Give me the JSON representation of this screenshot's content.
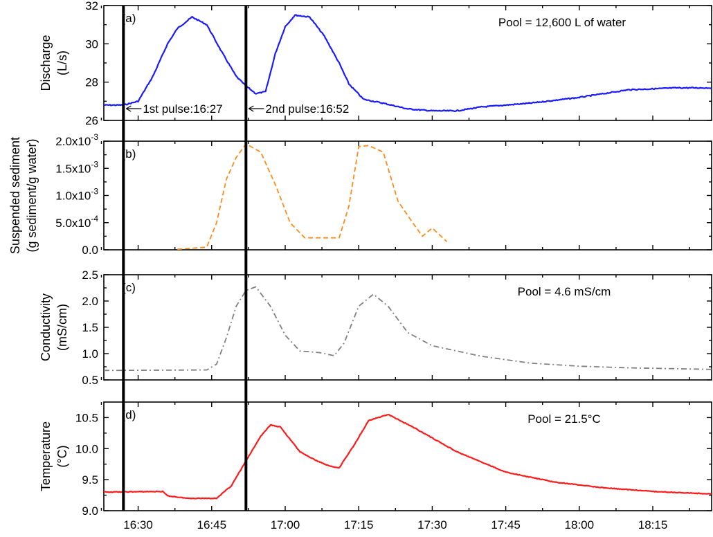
{
  "chart_data": [
    {
      "type": "line",
      "panel_label": "(a)",
      "ylabel_lines": [
        "Discharge",
        "(L/s)"
      ],
      "ylim": [
        26,
        32
      ],
      "yticks": [
        "26",
        "28",
        "30",
        "32"
      ],
      "ytick_values": [
        26,
        28,
        30,
        32
      ],
      "annotation": "Pool = 12,600 L of water",
      "series": [
        {
          "color": "#1a1aff",
          "style": "solid-noisy",
          "points": [
            [
              "16:23",
              26.8
            ],
            [
              "16:27",
              26.8
            ],
            [
              "16:30",
              27.0
            ],
            [
              "16:33",
              28.3
            ],
            [
              "16:36",
              30.0
            ],
            [
              "16:38",
              30.8
            ],
            [
              "16:41",
              31.4
            ],
            [
              "16:44",
              31.0
            ],
            [
              "16:47",
              29.6
            ],
            [
              "16:50",
              28.3
            ],
            [
              "16:52",
              27.8
            ],
            [
              "16:54",
              27.4
            ],
            [
              "16:56",
              27.5
            ],
            [
              "16:58",
              29.5
            ],
            [
              "17:00",
              30.9
            ],
            [
              "17:02",
              31.5
            ],
            [
              "17:05",
              31.4
            ],
            [
              "17:08",
              30.4
            ],
            [
              "17:11",
              29.0
            ],
            [
              "17:13",
              27.9
            ],
            [
              "17:16",
              27.1
            ],
            [
              "17:20",
              26.9
            ],
            [
              "17:25",
              26.6
            ],
            [
              "17:30",
              26.5
            ],
            [
              "17:35",
              26.5
            ],
            [
              "17:40",
              26.7
            ],
            [
              "17:50",
              26.9
            ],
            [
              "18:00",
              27.2
            ],
            [
              "18:10",
              27.6
            ],
            [
              "18:20",
              27.7
            ],
            [
              "18:27",
              27.7
            ]
          ]
        }
      ],
      "pulse_labels": [
        {
          "time": "16:27",
          "text": "1st pulse:16:27"
        },
        {
          "time": "16:52",
          "text": "2nd pulse:16:52"
        }
      ]
    },
    {
      "type": "line",
      "panel_label": "(b)",
      "ylabel_lines": [
        "Suspended sediment",
        "(g sediment/g water)"
      ],
      "ylim": [
        0,
        0.002
      ],
      "yticks": [
        "0.0",
        "5.0x10",
        "1.0x10",
        "1.5x10",
        "2.0x10"
      ],
      "ytick_exponents": [
        "",
        "-4",
        "-3",
        "-3",
        "-3"
      ],
      "ytick_values": [
        0,
        0.0005,
        0.001,
        0.0015,
        0.002
      ],
      "series": [
        {
          "color": "#ff8c1a",
          "style": "dashed",
          "points": [
            [
              "16:38",
              1e-05
            ],
            [
              "16:44",
              5e-05
            ],
            [
              "16:46",
              0.0005
            ],
            [
              "16:48",
              0.0013
            ],
            [
              "16:50",
              0.0017
            ],
            [
              "16:52",
              0.00195
            ],
            [
              "16:55",
              0.0018
            ],
            [
              "16:58",
              0.0012
            ],
            [
              "17:01",
              0.0005
            ],
            [
              "17:04",
              0.00022
            ],
            [
              "17:08",
              0.00022
            ],
            [
              "17:11",
              0.00022
            ],
            [
              "17:13",
              0.0008
            ],
            [
              "17:15",
              0.0019
            ],
            [
              "17:17",
              0.00192
            ],
            [
              "17:20",
              0.0018
            ],
            [
              "17:23",
              0.0009
            ],
            [
              "17:26",
              0.0005
            ],
            [
              "17:28",
              0.00025
            ],
            [
              "17:30",
              0.0004
            ],
            [
              "17:33",
              0.00015
            ]
          ]
        }
      ]
    },
    {
      "type": "line",
      "panel_label": "(c)",
      "ylabel_lines": [
        "Conductivity",
        "(mS/cm)"
      ],
      "ylim": [
        0.5,
        2.5
      ],
      "yticks": [
        "0.5",
        "1.0",
        "1.5",
        "2.0",
        "2.5"
      ],
      "ytick_values": [
        0.5,
        1.0,
        1.5,
        2.0,
        2.5
      ],
      "annotation": "Pool = 4.6 mS/cm",
      "series": [
        {
          "color": "#808080",
          "style": "dash-dot",
          "points": [
            [
              "16:23",
              0.68
            ],
            [
              "16:44",
              0.69
            ],
            [
              "16:46",
              0.8
            ],
            [
              "16:48",
              1.3
            ],
            [
              "16:50",
              1.9
            ],
            [
              "16:52",
              2.2
            ],
            [
              "16:54",
              2.27
            ],
            [
              "16:57",
              1.9
            ],
            [
              "17:00",
              1.35
            ],
            [
              "17:03",
              1.05
            ],
            [
              "17:07",
              1.02
            ],
            [
              "17:10",
              0.96
            ],
            [
              "17:12",
              1.2
            ],
            [
              "17:15",
              1.9
            ],
            [
              "17:18",
              2.13
            ],
            [
              "17:21",
              1.9
            ],
            [
              "17:25",
              1.4
            ],
            [
              "17:30",
              1.15
            ],
            [
              "17:40",
              0.95
            ],
            [
              "17:50",
              0.82
            ],
            [
              "18:00",
              0.76
            ],
            [
              "18:10",
              0.73
            ],
            [
              "18:27",
              0.7
            ]
          ]
        }
      ]
    },
    {
      "type": "line",
      "panel_label": "(d)",
      "ylabel_lines": [
        "Temperature",
        "(°C)"
      ],
      "ylim": [
        9.0,
        10.75
      ],
      "yticks": [
        "9.0",
        "9.5",
        "10.0",
        "10.5"
      ],
      "ytick_values": [
        9.0,
        9.5,
        10.0,
        10.5
      ],
      "annotation": "Pool = 21.5°C",
      "series": [
        {
          "color": "#ff1a1a",
          "style": "solid-noisy",
          "points": [
            [
              "16:23",
              9.3
            ],
            [
              "16:35",
              9.31
            ],
            [
              "16:36",
              9.24
            ],
            [
              "16:40",
              9.2
            ],
            [
              "16:46",
              9.2
            ],
            [
              "16:49",
              9.4
            ],
            [
              "16:52",
              9.8
            ],
            [
              "16:55",
              10.2
            ],
            [
              "16:57",
              10.38
            ],
            [
              "16:59",
              10.35
            ],
            [
              "17:03",
              9.95
            ],
            [
              "17:06",
              9.82
            ],
            [
              "17:09",
              9.72
            ],
            [
              "17:11",
              9.69
            ],
            [
              "17:14",
              10.05
            ],
            [
              "17:17",
              10.45
            ],
            [
              "17:21",
              10.55
            ],
            [
              "17:26",
              10.35
            ],
            [
              "17:35",
              9.95
            ],
            [
              "17:45",
              9.62
            ],
            [
              "17:55",
              9.46
            ],
            [
              "18:05",
              9.37
            ],
            [
              "18:15",
              9.31
            ],
            [
              "18:27",
              9.27
            ]
          ]
        }
      ]
    }
  ],
  "x_axis": {
    "type": "time",
    "range": [
      "16:23",
      "18:27"
    ],
    "ticks": [
      "16:30",
      "16:45",
      "17:00",
      "17:15",
      "17:30",
      "17:45",
      "18:00",
      "18:15"
    ]
  },
  "pulse_times": [
    "16:27",
    "16:52"
  ]
}
